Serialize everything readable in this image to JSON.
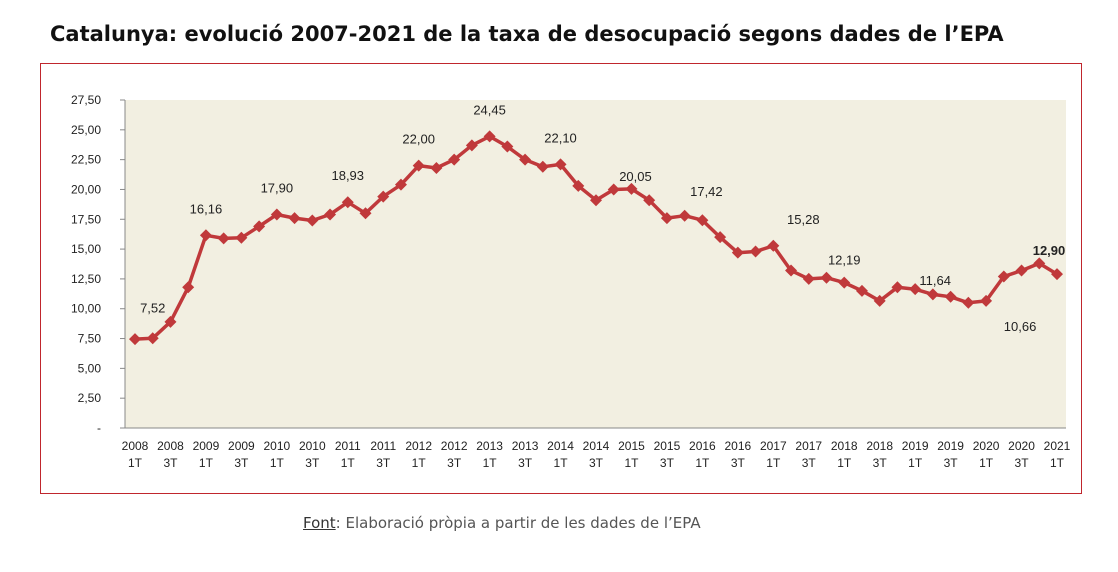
{
  "title": "Catalunya: evolució 2007-2021 de la taxa de desocupació segons dades de l’EPA",
  "source": {
    "label": "Font",
    "text": ": Elaboració pròpia a partir de les dades de l’EPA"
  },
  "colors": {
    "line": "#c0393b",
    "plot_background": "#f2efe1",
    "frame": "#c0262d"
  },
  "chart_data": {
    "type": "line",
    "ylim": [
      0,
      27.5
    ],
    "yticks": [
      "-",
      "2,50",
      "5,00",
      "7,50",
      "10,00",
      "12,50",
      "15,00",
      "17,50",
      "20,00",
      "22,50",
      "25,00",
      "27,50"
    ],
    "xticks": [
      {
        "year": "2008",
        "q": "1T"
      },
      {
        "year": "2008",
        "q": "3T"
      },
      {
        "year": "2009",
        "q": "1T"
      },
      {
        "year": "2009",
        "q": "3T"
      },
      {
        "year": "2010",
        "q": "1T"
      },
      {
        "year": "2010",
        "q": "3T"
      },
      {
        "year": "2011",
        "q": "1T"
      },
      {
        "year": "2011",
        "q": "3T"
      },
      {
        "year": "2012",
        "q": "1T"
      },
      {
        "year": "2012",
        "q": "3T"
      },
      {
        "year": "2013",
        "q": "1T"
      },
      {
        "year": "2013",
        "q": "3T"
      },
      {
        "year": "2014",
        "q": "1T"
      },
      {
        "year": "2014",
        "q": "3T"
      },
      {
        "year": "2015",
        "q": "1T"
      },
      {
        "year": "2015",
        "q": "3T"
      },
      {
        "year": "2016",
        "q": "1T"
      },
      {
        "year": "2016",
        "q": "3T"
      },
      {
        "year": "2017",
        "q": "1T"
      },
      {
        "year": "2017",
        "q": "3T"
      },
      {
        "year": "2018",
        "q": "1T"
      },
      {
        "year": "2018",
        "q": "3T"
      },
      {
        "year": "2019",
        "q": "1T"
      },
      {
        "year": "2019",
        "q": "3T"
      },
      {
        "year": "2020",
        "q": "1T"
      },
      {
        "year": "2020",
        "q": "3T"
      },
      {
        "year": "2021",
        "q": "1T"
      }
    ],
    "values": [
      7.45,
      7.52,
      8.9,
      11.8,
      16.16,
      15.9,
      15.95,
      16.9,
      17.9,
      17.6,
      17.4,
      17.9,
      18.93,
      18.0,
      19.4,
      20.4,
      22.0,
      21.8,
      22.5,
      23.7,
      24.45,
      23.6,
      22.5,
      21.9,
      22.1,
      20.3,
      19.1,
      20.0,
      20.05,
      19.1,
      17.6,
      17.8,
      17.42,
      16.0,
      14.7,
      14.8,
      15.28,
      13.2,
      12.5,
      12.6,
      12.19,
      11.5,
      10.66,
      11.8,
      11.64,
      11.2,
      11.0,
      10.5,
      10.66,
      12.7,
      13.2,
      13.8,
      12.9
    ],
    "data_labels": [
      {
        "index": 1,
        "text": "7,52"
      },
      {
        "index": 4,
        "text": "16,16"
      },
      {
        "index": 8,
        "text": "17,90"
      },
      {
        "index": 12,
        "text": "18,93"
      },
      {
        "index": 16,
        "text": "22,00"
      },
      {
        "index": 20,
        "text": "24,45"
      },
      {
        "index": 24,
        "text": "22,10"
      },
      {
        "index": 28,
        "text": "20,05"
      },
      {
        "index": 32,
        "text": "17,42"
      },
      {
        "index": 36,
        "text": "15,28"
      },
      {
        "index": 40,
        "text": "12,19"
      },
      {
        "index": 44,
        "text": "11,64"
      },
      {
        "index": 48,
        "text": "10,66"
      },
      {
        "index": 52,
        "text": "12,90"
      }
    ],
    "grid": false,
    "legend": "none"
  }
}
